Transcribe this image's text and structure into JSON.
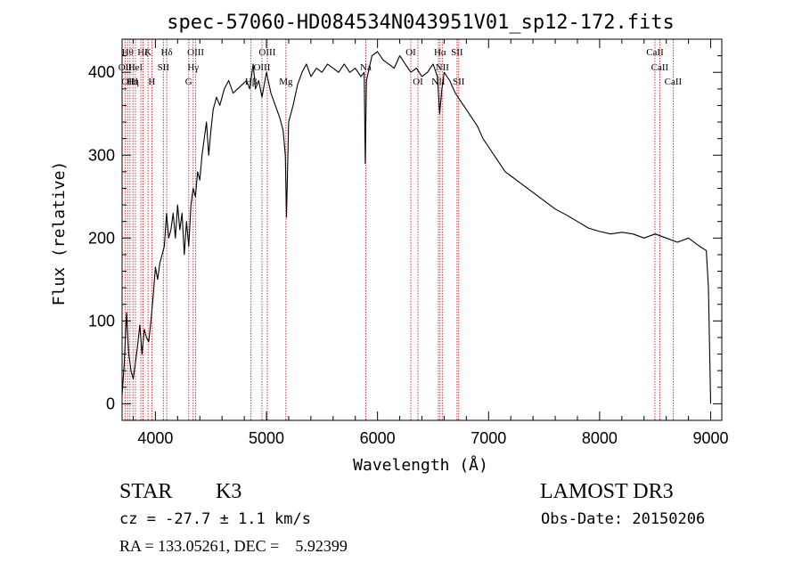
{
  "chart_data": {
    "type": "line",
    "title": "spec-57060-HD084534N043951V01_sp12-172.fits",
    "xlabel": "Wavelength (Å)",
    "ylabel": "Flux (relative)",
    "xlim": [
      3700,
      9100
    ],
    "ylim": [
      -20,
      440
    ],
    "x_ticks": [
      4000,
      5000,
      6000,
      7000,
      8000,
      9000
    ],
    "y_ticks": [
      0,
      100,
      200,
      300,
      400
    ],
    "series": [
      {
        "color": "#000000",
        "points": [
          [
            3700,
            10
          ],
          [
            3720,
            50
          ],
          [
            3740,
            110
          ],
          [
            3760,
            60
          ],
          [
            3780,
            40
          ],
          [
            3800,
            30
          ],
          [
            3820,
            50
          ],
          [
            3840,
            70
          ],
          [
            3860,
            95
          ],
          [
            3880,
            60
          ],
          [
            3900,
            90
          ],
          [
            3920,
            80
          ],
          [
            3940,
            75
          ],
          [
            3960,
            100
          ],
          [
            3980,
            130
          ],
          [
            4000,
            165
          ],
          [
            4020,
            150
          ],
          [
            4040,
            170
          ],
          [
            4060,
            180
          ],
          [
            4080,
            190
          ],
          [
            4100,
            230
          ],
          [
            4120,
            200
          ],
          [
            4140,
            210
          ],
          [
            4160,
            230
          ],
          [
            4180,
            200
          ],
          [
            4200,
            240
          ],
          [
            4220,
            210
          ],
          [
            4240,
            230
          ],
          [
            4260,
            180
          ],
          [
            4280,
            220
          ],
          [
            4300,
            190
          ],
          [
            4320,
            240
          ],
          [
            4340,
            260
          ],
          [
            4360,
            250
          ],
          [
            4380,
            280
          ],
          [
            4400,
            270
          ],
          [
            4420,
            300
          ],
          [
            4440,
            320
          ],
          [
            4460,
            340
          ],
          [
            4480,
            300
          ],
          [
            4500,
            330
          ],
          [
            4520,
            355
          ],
          [
            4550,
            370
          ],
          [
            4580,
            360
          ],
          [
            4620,
            380
          ],
          [
            4660,
            390
          ],
          [
            4700,
            375
          ],
          [
            4740,
            380
          ],
          [
            4780,
            385
          ],
          [
            4820,
            390
          ],
          [
            4850,
            380
          ],
          [
            4880,
            410
          ],
          [
            4900,
            380
          ],
          [
            4930,
            390
          ],
          [
            4960,
            370
          ],
          [
            5000,
            400
          ],
          [
            5040,
            375
          ],
          [
            5080,
            360
          ],
          [
            5120,
            345
          ],
          [
            5150,
            330
          ],
          [
            5170,
            300
          ],
          [
            5180,
            225
          ],
          [
            5200,
            340
          ],
          [
            5240,
            360
          ],
          [
            5280,
            385
          ],
          [
            5320,
            400
          ],
          [
            5360,
            410
          ],
          [
            5400,
            395
          ],
          [
            5450,
            405
          ],
          [
            5500,
            400
          ],
          [
            5550,
            410
          ],
          [
            5600,
            405
          ],
          [
            5650,
            400
          ],
          [
            5700,
            410
          ],
          [
            5750,
            400
          ],
          [
            5800,
            405
          ],
          [
            5850,
            395
          ],
          [
            5880,
            400
          ],
          [
            5890,
            290
          ],
          [
            5900,
            390
          ],
          [
            5950,
            420
          ],
          [
            6000,
            425
          ],
          [
            6050,
            415
          ],
          [
            6100,
            410
          ],
          [
            6150,
            405
          ],
          [
            6200,
            420
          ],
          [
            6250,
            410
          ],
          [
            6300,
            400
          ],
          [
            6350,
            405
          ],
          [
            6400,
            395
          ],
          [
            6450,
            400
          ],
          [
            6500,
            410
          ],
          [
            6540,
            395
          ],
          [
            6560,
            350
          ],
          [
            6580,
            380
          ],
          [
            6600,
            400
          ],
          [
            6650,
            390
          ],
          [
            6700,
            375
          ],
          [
            6750,
            365
          ],
          [
            6800,
            355
          ],
          [
            6850,
            345
          ],
          [
            6900,
            335
          ],
          [
            6950,
            320
          ],
          [
            7000,
            310
          ],
          [
            7050,
            300
          ],
          [
            7100,
            290
          ],
          [
            7150,
            280
          ],
          [
            7200,
            275
          ],
          [
            7300,
            265
          ],
          [
            7400,
            255
          ],
          [
            7500,
            245
          ],
          [
            7600,
            235
          ],
          [
            7700,
            228
          ],
          [
            7800,
            220
          ],
          [
            7900,
            212
          ],
          [
            8000,
            208
          ],
          [
            8100,
            205
          ],
          [
            8200,
            207
          ],
          [
            8300,
            205
          ],
          [
            8400,
            200
          ],
          [
            8500,
            205
          ],
          [
            8600,
            200
          ],
          [
            8700,
            195
          ],
          [
            8800,
            200
          ],
          [
            8900,
            190
          ],
          [
            8960,
            185
          ],
          [
            8980,
            140
          ],
          [
            9000,
            0
          ]
        ]
      }
    ],
    "line_markers": [
      {
        "x": 3727,
        "label": "OII",
        "row": 1
      },
      {
        "x": 3750,
        "label": "Hθ",
        "row": 0
      },
      {
        "x": 3771,
        "label": "OIII",
        "row": 2
      },
      {
        "x": 3798,
        "label": "Hη",
        "row": 2
      },
      {
        "x": 3820,
        "label": "HeI",
        "row": 1
      },
      {
        "x": 3869,
        "label": "NeIII",
        "row": -1
      },
      {
        "x": 3889,
        "label": "Hζ",
        "row": 0
      },
      {
        "x": 3934,
        "label": "K",
        "row": 0
      },
      {
        "x": 3968,
        "label": "H",
        "row": 2
      },
      {
        "x": 4072,
        "label": "SII",
        "row": 1
      },
      {
        "x": 4102,
        "label": "Hδ",
        "row": 0
      },
      {
        "x": 4300,
        "label": "G",
        "row": 2
      },
      {
        "x": 4340,
        "label": "Hγ",
        "row": 1
      },
      {
        "x": 4363,
        "label": "OIII",
        "row": 0
      },
      {
        "x": 4861,
        "label": "Hβ",
        "row": 2
      },
      {
        "x": 4959,
        "label": "OIII",
        "row": 1
      },
      {
        "x": 5007,
        "label": "OIII",
        "row": 0
      },
      {
        "x": 5175,
        "label": "Mg",
        "row": 2
      },
      {
        "x": 5894,
        "label": "Na",
        "row": 1
      },
      {
        "x": 6300,
        "label": "OI",
        "row": 0
      },
      {
        "x": 6364,
        "label": "OI",
        "row": 2
      },
      {
        "x": 6548,
        "label": "NII",
        "row": 2
      },
      {
        "x": 6563,
        "label": "Hα",
        "row": 0
      },
      {
        "x": 6583,
        "label": "NII",
        "row": 1
      },
      {
        "x": 6716,
        "label": "SII",
        "row": 0
      },
      {
        "x": 6731,
        "label": "SII",
        "row": 2
      },
      {
        "x": 8498,
        "label": "CaII",
        "row": 0
      },
      {
        "x": 8542,
        "label": "CaII",
        "row": 1
      },
      {
        "x": 8662,
        "label": "CaII",
        "row": 2
      }
    ]
  },
  "info": {
    "object_type": "STAR",
    "subclass": "K3",
    "survey": "LAMOST DR3",
    "cz": "cz = -27.7 ± 1.1 km/s",
    "obs_date": "Obs-Date: 20150206",
    "coords": "RA = 133.05261, DEC =    5.92399"
  }
}
